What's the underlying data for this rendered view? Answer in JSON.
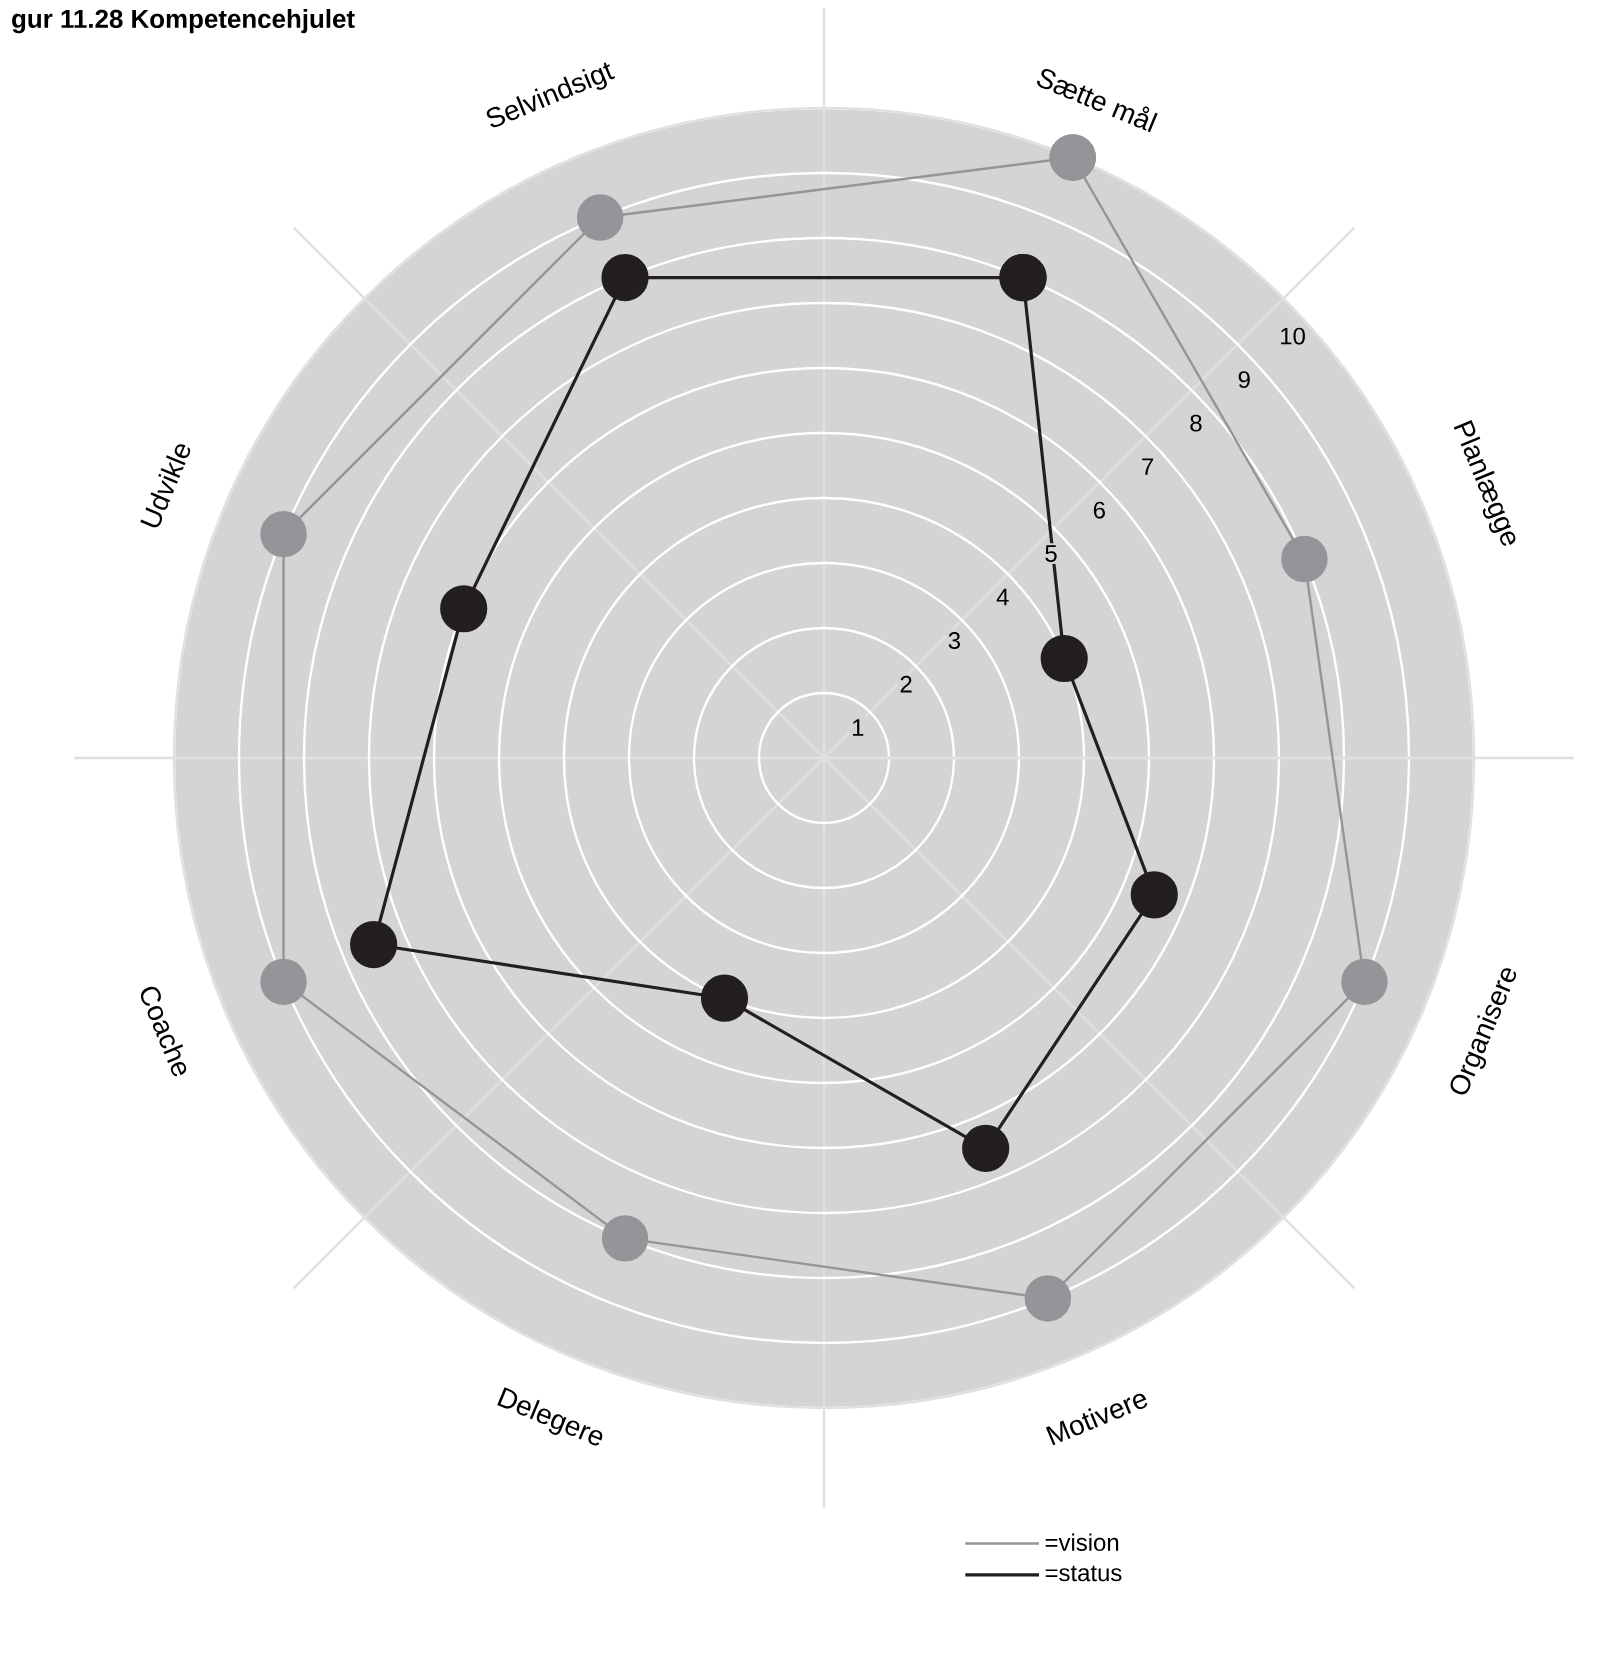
{
  "chart_data": {
    "type": "radar",
    "title": "gur 11.28 Kompetencehjulet",
    "categories": [
      "Sætte mål",
      "Planlægge",
      "Organisere",
      "Motivere",
      "Delegere",
      "Coache",
      "Udvikle",
      "Selvindsigt"
    ],
    "series": [
      {
        "name": "=vision",
        "color": "#939598",
        "values": [
          10,
          8,
          9,
          9,
          8,
          9,
          9,
          9
        ]
      },
      {
        "name": "=status",
        "color": "#231f20",
        "values": [
          8,
          4,
          5.5,
          6.5,
          4,
          7.5,
          6,
          8
        ]
      }
    ],
    "ylim": [
      0,
      10
    ],
    "yticks": [
      1,
      2,
      3,
      4,
      5,
      6,
      7,
      8,
      9,
      10
    ],
    "grid": true,
    "legend": "bottom",
    "marker": "circle"
  }
}
